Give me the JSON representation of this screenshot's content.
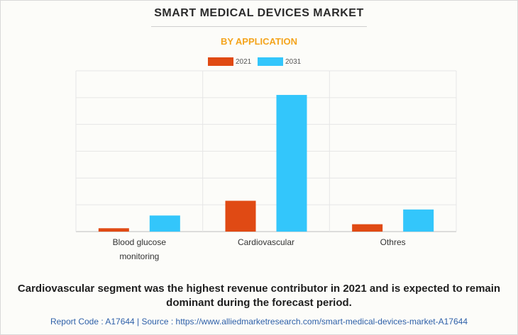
{
  "chart_data": {
    "type": "bar",
    "title": "SMART MEDICAL DEVICES MARKET",
    "subtitle": "BY APPLICATION",
    "categories": [
      "Blood glucose\nmonitoring",
      "Cardiovascular",
      "Othres"
    ],
    "series": [
      {
        "name": "2021",
        "color": "#e04a14",
        "values": [
          2.5,
          23,
          5.5
        ]
      },
      {
        "name": "2031",
        "color": "#33c6fb",
        "values": [
          12,
          102,
          16.5
        ]
      }
    ],
    "ylim": [
      0,
      120
    ],
    "grid": true,
    "legend_position": "top-center"
  },
  "caption": "Cardiovascular segment was the highest revenue contributor in 2021 and is expected to remain dominant during the forecast period.",
  "footer": "Report Code : A17644  |  Source : https://www.alliedmarketresearch.com/smart-medical-devices-market-A17644"
}
